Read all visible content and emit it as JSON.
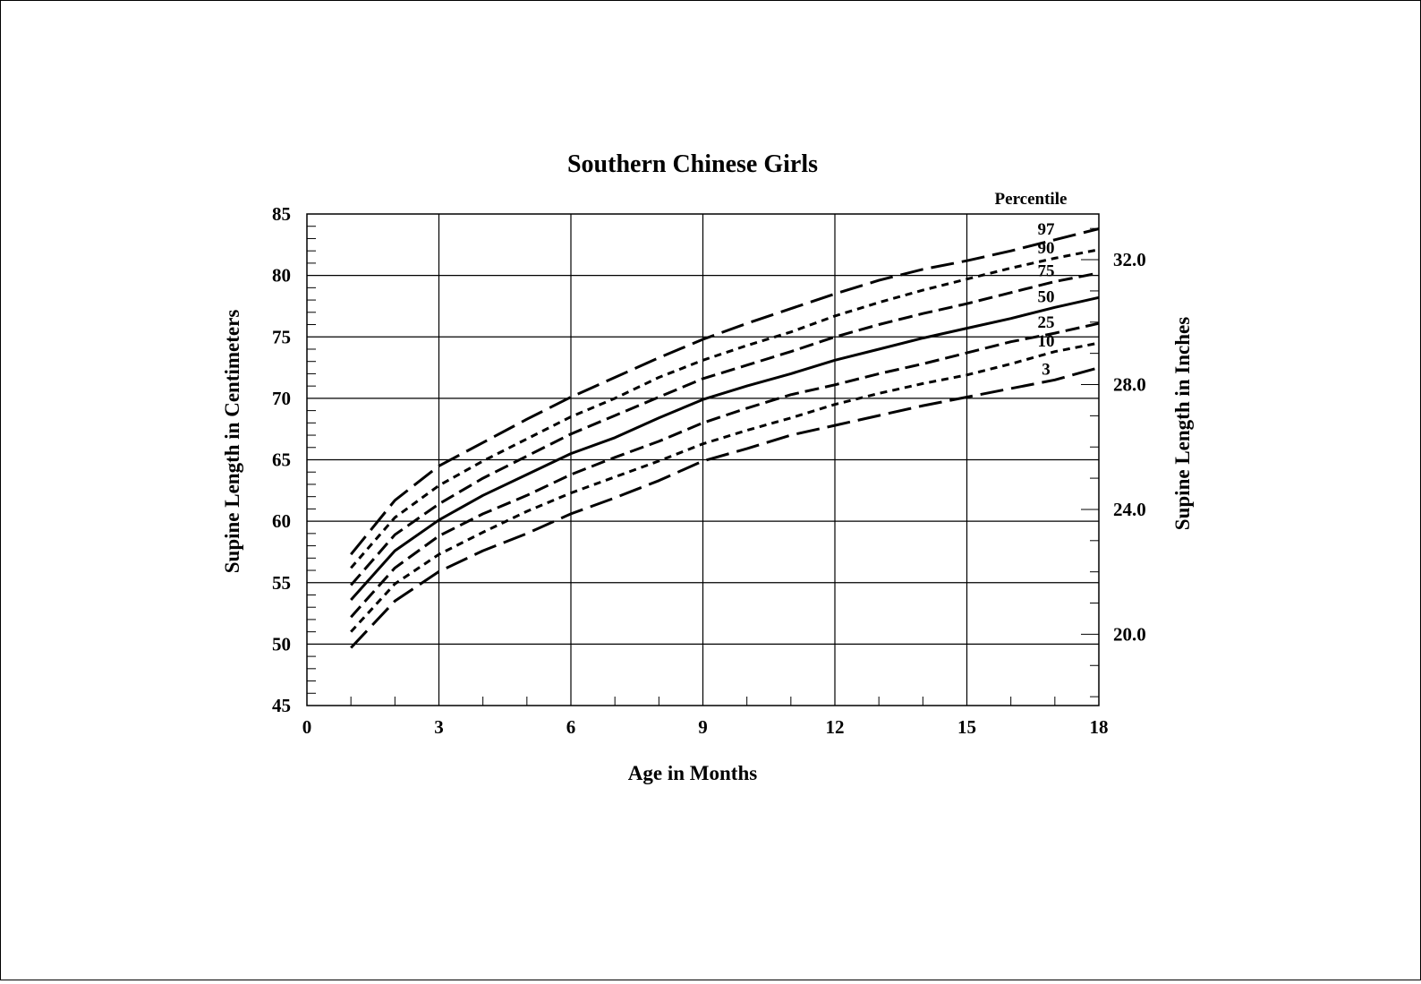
{
  "chart_data": {
    "type": "line",
    "title": "Southern Chinese Girls",
    "xlabel": "Age in Months",
    "ylabel": "Supine Length in Centimeters",
    "ylabel_right": "Supine Length in Inches",
    "legend_title": "Percentile",
    "xlim": [
      0,
      18
    ],
    "ylim": [
      45,
      85
    ],
    "x_ticks": [
      0,
      3,
      6,
      9,
      12,
      15,
      18
    ],
    "y_ticks": [
      45,
      50,
      55,
      60,
      65,
      70,
      75,
      80,
      85
    ],
    "y_right_ticks": [
      {
        "inches": 20.0,
        "label": "20.0"
      },
      {
        "inches": 24.0,
        "label": "24.0"
      },
      {
        "inches": 28.0,
        "label": "28.0"
      },
      {
        "inches": 32.0,
        "label": "32.0"
      }
    ],
    "grid": true,
    "x": [
      1,
      2,
      3,
      4,
      5,
      6,
      7,
      8,
      9,
      10,
      11,
      12,
      13,
      14,
      15,
      16,
      17,
      18
    ],
    "series": [
      {
        "name": "97",
        "style": "long-dash",
        "values": [
          57.3,
          61.7,
          64.5,
          66.4,
          68.3,
          70.1,
          71.7,
          73.3,
          74.8,
          76.1,
          77.3,
          78.5,
          79.6,
          80.5,
          81.2,
          82.0,
          82.9,
          83.8
        ]
      },
      {
        "name": "90",
        "style": "short-dash",
        "values": [
          56.2,
          60.3,
          62.9,
          64.9,
          66.7,
          68.5,
          70.0,
          71.7,
          73.1,
          74.3,
          75.4,
          76.7,
          77.8,
          78.8,
          79.7,
          80.6,
          81.4,
          82.1
        ]
      },
      {
        "name": "75",
        "style": "dash",
        "values": [
          54.8,
          58.9,
          61.4,
          63.5,
          65.3,
          67.1,
          68.6,
          70.1,
          71.6,
          72.7,
          73.8,
          75.0,
          76.0,
          76.9,
          77.7,
          78.6,
          79.5,
          80.2
        ]
      },
      {
        "name": "50",
        "style": "solid",
        "values": [
          53.6,
          57.6,
          60.1,
          62.1,
          63.8,
          65.5,
          66.8,
          68.4,
          69.9,
          71.0,
          72.0,
          73.1,
          74.0,
          74.9,
          75.7,
          76.5,
          77.4,
          78.2
        ]
      },
      {
        "name": "25",
        "style": "dash",
        "values": [
          52.2,
          56.2,
          58.8,
          60.6,
          62.1,
          63.8,
          65.2,
          66.5,
          68.0,
          69.2,
          70.3,
          71.1,
          72.0,
          72.8,
          73.7,
          74.6,
          75.3,
          76.1
        ]
      },
      {
        "name": "10",
        "style": "short-dash",
        "values": [
          51.0,
          54.9,
          57.3,
          59.1,
          60.8,
          62.3,
          63.6,
          64.9,
          66.3,
          67.4,
          68.4,
          69.5,
          70.4,
          71.2,
          71.9,
          72.8,
          73.8,
          74.5
        ]
      },
      {
        "name": "3",
        "style": "long-dash",
        "values": [
          49.7,
          53.5,
          55.9,
          57.6,
          59.0,
          60.6,
          61.9,
          63.3,
          64.9,
          65.9,
          67.0,
          67.8,
          68.6,
          69.4,
          70.1,
          70.8,
          71.5,
          72.5
        ]
      }
    ]
  }
}
